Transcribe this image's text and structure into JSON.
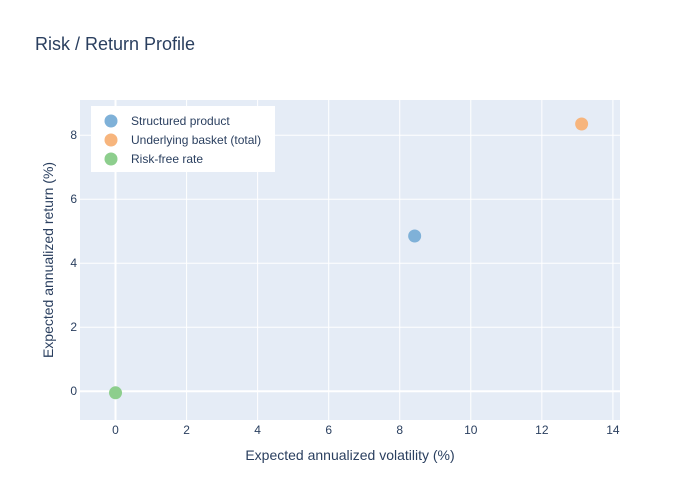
{
  "chart_data": {
    "type": "scatter",
    "title": "Risk / Return Profile",
    "xlabel": "Expected annualized volatility (%)",
    "ylabel": "Expected annualized return (%)",
    "xlim": [
      -1,
      14.2
    ],
    "ylim": [
      -0.9,
      9.1
    ],
    "xticks": [
      0,
      2,
      4,
      6,
      8,
      10,
      12,
      14
    ],
    "yticks": [
      0,
      2,
      4,
      6,
      8
    ],
    "grid": true,
    "legend_position": "top-left",
    "series": [
      {
        "name": "Structured product",
        "color": "#7fb1d8",
        "x": [
          8.42
        ],
        "y": [
          4.85
        ]
      },
      {
        "name": "Underlying basket (total)",
        "color": "#f7b57d",
        "x": [
          13.12
        ],
        "y": [
          8.35
        ]
      },
      {
        "name": "Risk-free rate",
        "color": "#8dce8d",
        "x": [
          0.0
        ],
        "y": [
          -0.05
        ]
      }
    ]
  }
}
